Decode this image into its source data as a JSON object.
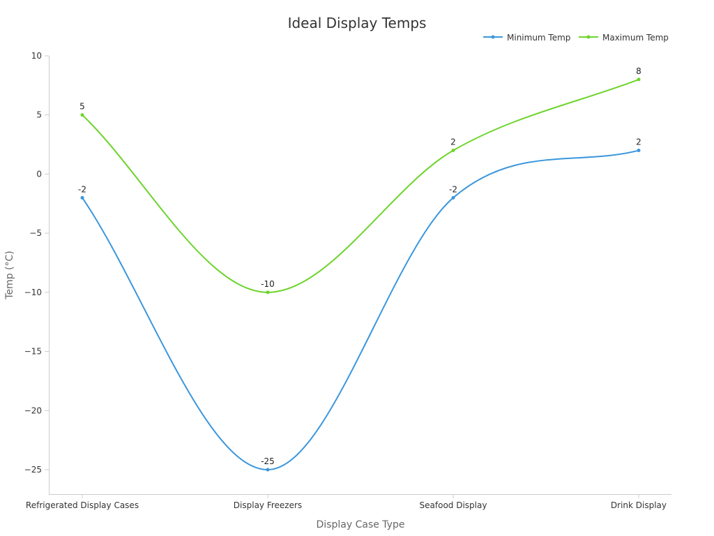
{
  "chart_data": {
    "type": "line",
    "title": "Ideal Display Temps",
    "xlabel": "Display Case Type",
    "ylabel": "Temp (°C)",
    "categories": [
      "Refrigerated Display Cases",
      "Display Freezers",
      "Seafood Display",
      "Drink Display"
    ],
    "series": [
      {
        "name": "Minimum Temp",
        "color": "#3a96dd",
        "values": [
          -2,
          -25,
          -2,
          2
        ]
      },
      {
        "name": "Maximum Temp",
        "color": "#6dd42c",
        "values": [
          5,
          -10,
          2,
          8
        ]
      }
    ],
    "ylim": [
      -27.1,
      10
    ],
    "yticks": [
      10,
      5,
      0,
      -5,
      -10,
      -15,
      -20,
      -25
    ],
    "ytick_labels": [
      "10",
      "5",
      "0",
      "−5",
      "−10",
      "−15",
      "−20",
      "−25"
    ],
    "grid": false,
    "legend_position": "top-right",
    "smooth": true,
    "data_labels": true
  }
}
